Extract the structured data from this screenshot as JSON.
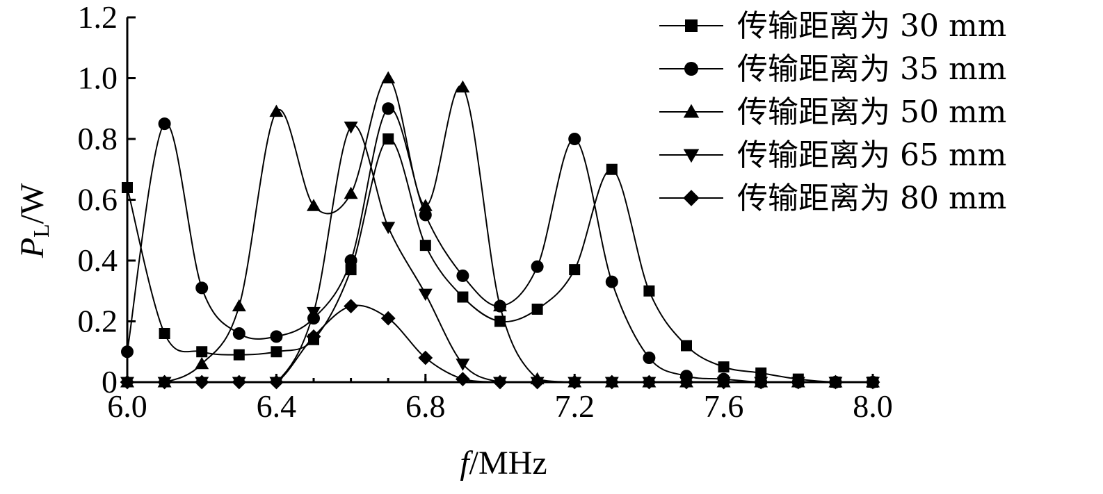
{
  "chart_data": {
    "type": "line",
    "xlabel": {
      "var": "f",
      "unit": "/MHz"
    },
    "ylabel": {
      "var": "P",
      "sub": "L",
      "unit": "/W"
    },
    "xlim": [
      6.0,
      8.0
    ],
    "ylim": [
      0,
      1.2
    ],
    "xticks": [
      "6.0",
      "6.4",
      "6.8",
      "7.2",
      "7.6",
      "8.0"
    ],
    "yticks": [
      "0",
      "0.2",
      "0.4",
      "0.6",
      "0.8",
      "1.0",
      "1.2"
    ],
    "grid": false,
    "legend_position": "top-right",
    "series": [
      {
        "name": "传输距离为 30 mm",
        "marker": "square",
        "x": [
          6.0,
          6.1,
          6.2,
          6.3,
          6.4,
          6.5,
          6.6,
          6.7,
          6.8,
          6.9,
          7.0,
          7.1,
          7.2,
          7.3,
          7.4,
          7.5,
          7.6,
          7.7,
          7.8,
          7.9,
          8.0
        ],
        "y": [
          0.64,
          0.16,
          0.1,
          0.09,
          0.1,
          0.14,
          0.37,
          0.8,
          0.45,
          0.28,
          0.2,
          0.24,
          0.37,
          0.7,
          0.3,
          0.12,
          0.05,
          0.03,
          0.01,
          0.0,
          0.0
        ]
      },
      {
        "name": "传输距离为 35 mm",
        "marker": "circle",
        "x": [
          6.0,
          6.1,
          6.2,
          6.3,
          6.4,
          6.5,
          6.6,
          6.7,
          6.8,
          6.9,
          7.0,
          7.1,
          7.2,
          7.3,
          7.4,
          7.5,
          7.6,
          7.7,
          7.8,
          7.9,
          8.0
        ],
        "y": [
          0.1,
          0.85,
          0.31,
          0.16,
          0.15,
          0.21,
          0.4,
          0.9,
          0.55,
          0.35,
          0.25,
          0.38,
          0.8,
          0.33,
          0.08,
          0.02,
          0.01,
          0.0,
          0.0,
          0.0,
          0.0
        ]
      },
      {
        "name": "传输距离为 50 mm",
        "marker": "triangle-up",
        "x": [
          6.0,
          6.1,
          6.2,
          6.3,
          6.4,
          6.5,
          6.6,
          6.7,
          6.8,
          6.9,
          7.0,
          7.1,
          7.2,
          7.3,
          7.4,
          7.5,
          7.6,
          7.7,
          7.8,
          7.9,
          8.0
        ],
        "y": [
          0.0,
          0.0,
          0.06,
          0.25,
          0.89,
          0.58,
          0.62,
          1.0,
          0.58,
          0.97,
          0.25,
          0.01,
          0.0,
          0.0,
          0.0,
          0.0,
          0.0,
          0.0,
          0.0,
          0.0,
          0.0
        ]
      },
      {
        "name": "传输距离为 65 mm",
        "marker": "triangle-down",
        "x": [
          6.0,
          6.1,
          6.2,
          6.3,
          6.4,
          6.5,
          6.6,
          6.7,
          6.8,
          6.9,
          7.0,
          7.1,
          7.2,
          7.3,
          7.4,
          7.5,
          7.6,
          7.7,
          7.8,
          7.9,
          8.0
        ],
        "y": [
          0.0,
          0.0,
          0.0,
          0.0,
          0.0,
          0.23,
          0.84,
          0.51,
          0.29,
          0.06,
          0.0,
          0.0,
          0.0,
          0.0,
          0.0,
          0.0,
          0.0,
          0.0,
          0.0,
          0.0,
          0.0
        ]
      },
      {
        "name": "传输距离为 80 mm",
        "marker": "diamond",
        "x": [
          6.0,
          6.1,
          6.2,
          6.3,
          6.4,
          6.5,
          6.6,
          6.7,
          6.8,
          6.9,
          7.0,
          7.1,
          7.2,
          7.3,
          7.4,
          7.5,
          7.6,
          7.7,
          7.8,
          7.9,
          8.0
        ],
        "y": [
          0.0,
          0.0,
          0.0,
          0.0,
          0.0,
          0.15,
          0.25,
          0.21,
          0.08,
          0.01,
          0.0,
          0.0,
          0.0,
          0.0,
          0.0,
          0.0,
          0.0,
          0.0,
          0.0,
          0.0,
          0.0
        ]
      }
    ]
  }
}
